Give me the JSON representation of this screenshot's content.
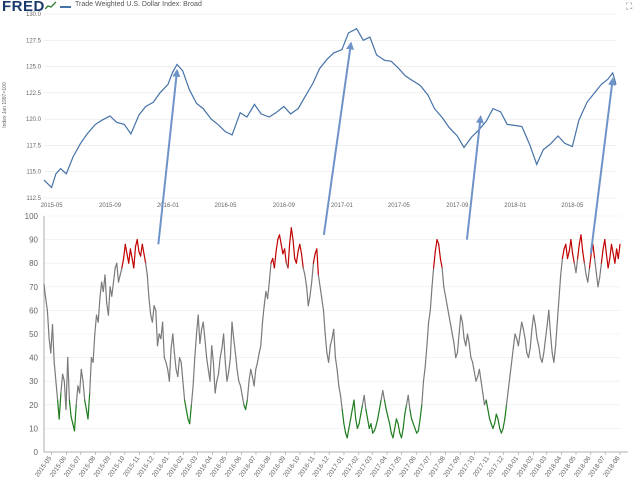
{
  "header": {
    "logo": "FRED",
    "series_title": "Trade Weighted U.S. Dollar Index: Broad",
    "ylabel": "Index Jan 1997=100",
    "expand_icon": "expand-icon"
  },
  "colors": {
    "top_line": "#4572a7",
    "gray_line": "#7a7a7a",
    "overbought": "#c00000",
    "oversold": "#1e7b1e",
    "arrow": "#6f93c8"
  },
  "chart_data": [
    {
      "type": "line",
      "title": "Trade Weighted U.S. Dollar Index: Broad",
      "ylabel": "Index Jan 1997=100",
      "ylim": [
        112.5,
        130.0
      ],
      "yticks": [
        "112.5",
        "115.0",
        "117.5",
        "120.0",
        "122.5",
        "125.0",
        "127.5",
        "130.0"
      ],
      "xticks": [
        "2015-05",
        "2015-09",
        "2016-01",
        "2016-05",
        "2016-09",
        "2017-01",
        "2017-05",
        "2017-09",
        "2018-01",
        "2018-05"
      ],
      "x": [
        "2015-04-15",
        "2015-05-01",
        "2015-05-10",
        "2015-05-20",
        "2015-06-01",
        "2015-06-15",
        "2015-07-01",
        "2015-07-15",
        "2015-08-01",
        "2015-08-15",
        "2015-09-01",
        "2015-09-15",
        "2015-10-01",
        "2015-10-15",
        "2015-11-01",
        "2015-11-15",
        "2015-12-01",
        "2015-12-15",
        "2016-01-01",
        "2016-01-10",
        "2016-01-20",
        "2016-02-01",
        "2016-02-15",
        "2016-03-01",
        "2016-03-15",
        "2016-04-01",
        "2016-04-15",
        "2016-05-01",
        "2016-05-15",
        "2016-06-01",
        "2016-06-15",
        "2016-07-01",
        "2016-07-15",
        "2016-08-01",
        "2016-08-15",
        "2016-09-01",
        "2016-09-15",
        "2016-10-01",
        "2016-10-15",
        "2016-11-01",
        "2016-11-15",
        "2016-12-01",
        "2016-12-15",
        "2017-01-01",
        "2017-01-15",
        "2017-02-01",
        "2017-02-15",
        "2017-03-01",
        "2017-03-15",
        "2017-04-01",
        "2017-04-15",
        "2017-05-01",
        "2017-05-15",
        "2017-06-01",
        "2017-06-15",
        "2017-07-01",
        "2017-07-15",
        "2017-08-01",
        "2017-08-15",
        "2017-09-01",
        "2017-09-15",
        "2017-10-01",
        "2017-10-15",
        "2017-11-01",
        "2017-11-15",
        "2017-12-01",
        "2017-12-15",
        "2018-01-01",
        "2018-01-15",
        "2018-02-01",
        "2018-02-15",
        "2018-03-01",
        "2018-03-15",
        "2018-04-01",
        "2018-04-15",
        "2018-05-01",
        "2018-05-15",
        "2018-06-01",
        "2018-06-15",
        "2018-07-01",
        "2018-07-15",
        "2018-07-25",
        "2018-08-01"
      ],
      "series": [
        {
          "values": [
            114.2,
            113.5,
            114.8,
            115.3,
            114.8,
            116.4,
            117.7,
            118.6,
            119.5,
            119.9,
            120.3,
            119.7,
            119.5,
            118.6,
            120.4,
            121.2,
            121.6,
            122.5,
            123.3,
            124.4,
            125.2,
            124.6,
            122.8,
            121.5,
            121.0,
            120.0,
            119.5,
            118.8,
            118.5,
            120.6,
            120.2,
            121.4,
            120.5,
            120.2,
            120.6,
            121.2,
            120.5,
            121.0,
            122.1,
            123.4,
            124.8,
            125.7,
            126.3,
            126.6,
            128.2,
            128.6,
            127.5,
            127.8,
            126.1,
            125.6,
            125.5,
            124.8,
            124.1,
            123.6,
            123.2,
            122.3,
            121.0,
            120.1,
            119.2,
            118.4,
            117.3,
            118.3,
            118.9,
            119.8,
            121.0,
            120.7,
            119.5,
            119.4,
            119.3,
            117.5,
            115.7,
            117.1,
            117.6,
            118.4,
            117.7,
            117.4,
            119.9,
            121.6,
            122.4,
            123.3,
            123.8,
            124.4,
            123.3
          ]
        }
      ]
    },
    {
      "type": "line",
      "ylim": [
        0,
        100
      ],
      "yticks": [
        "0",
        "10",
        "20",
        "30",
        "40",
        "50",
        "60",
        "70",
        "80",
        "90",
        "100"
      ],
      "xticks": [
        "2015-05",
        "2015-06",
        "2015-07",
        "2015-08",
        "2015-09",
        "2015-10",
        "2015-11",
        "2015-12",
        "2016-01",
        "2016-02",
        "2016-03",
        "2016-04",
        "2016-05",
        "2016-06",
        "2016-07",
        "2016-08",
        "2016-09",
        "2016-10",
        "2016-11",
        "2016-12",
        "2017-01",
        "2017-02",
        "2017-03",
        "2017-04",
        "2017-05",
        "2017-06",
        "2017-07",
        "2017-08",
        "2017-09",
        "2017-10",
        "2017-11",
        "2017-12",
        "2018-01",
        "2018-02",
        "2018-03",
        "2018-04",
        "2018-05",
        "2018-06",
        "2018-07",
        "2018-08"
      ],
      "x_start": "2015-04-15",
      "x_end": "2018-08-01",
      "series": [
        {
          "values": [
            71,
            65,
            60,
            48,
            42,
            54,
            38,
            30,
            22,
            14,
            25,
            33,
            30,
            18,
            40,
            22,
            15,
            12,
            9,
            20,
            28,
            25,
            35,
            30,
            22,
            18,
            14,
            25,
            40,
            38,
            50,
            58,
            55,
            65,
            72,
            68,
            75,
            63,
            58,
            70,
            66,
            72,
            78,
            80,
            72,
            75,
            78,
            82,
            88,
            84,
            80,
            86,
            82,
            78,
            87,
            90,
            85,
            83,
            88,
            84,
            80,
            75,
            65,
            58,
            55,
            62,
            60,
            45,
            50,
            48,
            55,
            40,
            38,
            35,
            30,
            44,
            50,
            42,
            35,
            32,
            40,
            38,
            30,
            22,
            18,
            14,
            12,
            20,
            28,
            40,
            50,
            58,
            46,
            52,
            55,
            48,
            40,
            35,
            30,
            45,
            38,
            25,
            30,
            33,
            40,
            44,
            50,
            38,
            30,
            34,
            40,
            55,
            48,
            42,
            35,
            30,
            28,
            24,
            20,
            18,
            22,
            30,
            35,
            32,
            28,
            35,
            38,
            42,
            45,
            55,
            62,
            68,
            65,
            72,
            80,
            82,
            78,
            85,
            90,
            92,
            88,
            84,
            86,
            80,
            78,
            88,
            95,
            90,
            82,
            80,
            85,
            88,
            84,
            78,
            75,
            70,
            62,
            66,
            72,
            80,
            84,
            86,
            75,
            70,
            65,
            60,
            50,
            42,
            38,
            45,
            48,
            52,
            40,
            35,
            28,
            24,
            18,
            12,
            8,
            6,
            10,
            14,
            18,
            22,
            14,
            10,
            12,
            16,
            20,
            24,
            18,
            14,
            10,
            12,
            8,
            9,
            11,
            14,
            18,
            22,
            26,
            22,
            18,
            15,
            12,
            8,
            6,
            10,
            14,
            12,
            8,
            6,
            10,
            16,
            20,
            24,
            18,
            14,
            12,
            10,
            8,
            9,
            14,
            20,
            30,
            36,
            45,
            55,
            60,
            70,
            78,
            85,
            90,
            88,
            82,
            78,
            70,
            66,
            62,
            58,
            54,
            50,
            46,
            40,
            42,
            50,
            58,
            55,
            48,
            45,
            50,
            46,
            40,
            38,
            34,
            30,
            32,
            35,
            30,
            25,
            20,
            22,
            18,
            14,
            12,
            10,
            12,
            16,
            14,
            10,
            8,
            10,
            14,
            20,
            26,
            32,
            38,
            44,
            50,
            48,
            45,
            50,
            55,
            52,
            48,
            42,
            40,
            44,
            52,
            58,
            54,
            48,
            45,
            40,
            38,
            42,
            48,
            54,
            60,
            50,
            42,
            38,
            45,
            55,
            65,
            75,
            82,
            86,
            88,
            82,
            85,
            90,
            84,
            80,
            76,
            82,
            88,
            92,
            85,
            80,
            75,
            72,
            78,
            84,
            88,
            82,
            76,
            70,
            74,
            80,
            86,
            90,
            84,
            78,
            82,
            88,
            84,
            80,
            86,
            82,
            88
          ]
        }
      ],
      "overbought_threshold": 80,
      "oversold_threshold": 20
    }
  ],
  "arrows": [
    {
      "from_date": "2015-12-10",
      "from_value": 88,
      "to_date": "2016-01-20",
      "to_value": 124.6
    },
    {
      "from_date": "2016-11-20",
      "from_value": 92,
      "to_date": "2017-01-20",
      "to_value": 127.2
    },
    {
      "from_date": "2017-09-15",
      "from_value": 90,
      "to_date": "2017-10-20",
      "to_value": 120.2
    },
    {
      "from_date": "2018-06-01",
      "from_value": 84,
      "to_date": "2018-07-25",
      "to_value": 123.8
    }
  ]
}
